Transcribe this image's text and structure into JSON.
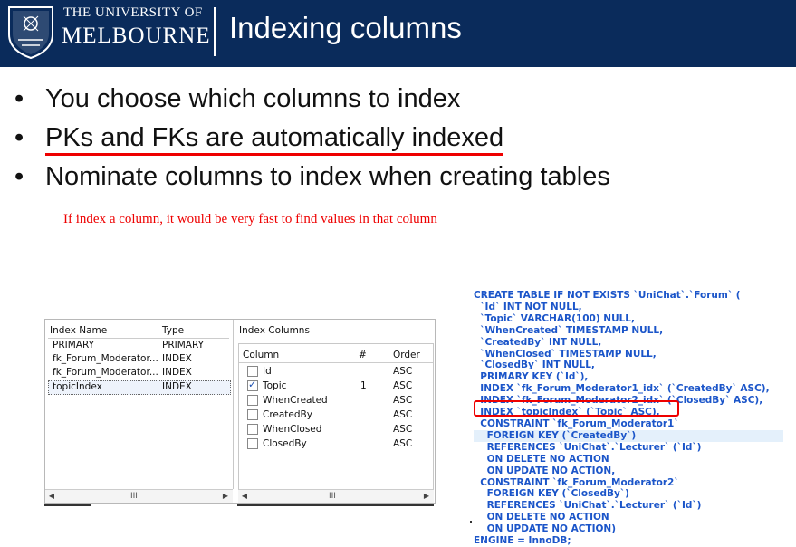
{
  "header": {
    "university_line1": "THE UNIVERSITY OF",
    "university_line2": "MELBOURNE",
    "title": "Indexing columns",
    "bg_color": "#0a2b5b"
  },
  "bullets": [
    "You choose which columns to index",
    "PKs and FKs are automatically indexed",
    "Nominate columns to index when creating tables"
  ],
  "note": "If index a column, it would be very fast to find values in that column",
  "index_panel": {
    "list_headers": {
      "name": "Index Name",
      "type": "Type"
    },
    "indexes": [
      {
        "name": "PRIMARY",
        "type": "PRIMARY"
      },
      {
        "name": "fk_Forum_Moderator...",
        "type": "INDEX"
      },
      {
        "name": "fk_Forum_Moderator...",
        "type": "INDEX"
      },
      {
        "name": "topicIndex",
        "type": "INDEX"
      }
    ],
    "columns_label": "Index Columns",
    "col_headers": {
      "column": "Column",
      "num": "#",
      "order": "Order"
    },
    "columns": [
      {
        "name": "Id",
        "checked": false,
        "num": "",
        "order": "ASC"
      },
      {
        "name": "Topic",
        "checked": true,
        "num": "1",
        "order": "ASC"
      },
      {
        "name": "WhenCreated",
        "checked": false,
        "num": "",
        "order": "ASC"
      },
      {
        "name": "CreatedBy",
        "checked": false,
        "num": "",
        "order": "ASC"
      },
      {
        "name": "WhenClosed",
        "checked": false,
        "num": "",
        "order": "ASC"
      },
      {
        "name": "ClosedBy",
        "checked": false,
        "num": "",
        "order": "ASC"
      }
    ],
    "scroll_grip": "III"
  },
  "sql_lines": [
    "CREATE TABLE IF NOT EXISTS `UniChat`.`Forum` (",
    "  `Id` INT NOT NULL,",
    "  `Topic` VARCHAR(100) NULL,",
    "  `WhenCreated` TIMESTAMP NULL,",
    "  `CreatedBy` INT NULL,",
    "  `WhenClosed` TIMESTAMP NULL,",
    "  `ClosedBy` INT NULL,",
    "  PRIMARY KEY (`Id`),",
    "  INDEX `fk_Forum_Moderator1_idx` (`CreatedBy` ASC),",
    "  INDEX `fk_Forum_Moderator2_idx` (`ClosedBy` ASC),",
    "  INDEX `topicIndex` (`Topic` ASC),",
    "  CONSTRAINT `fk_Forum_Moderator1`",
    "    FOREIGN KEY (`CreatedBy`)",
    "    REFERENCES `UniChat`.`Lecturer` (`Id`)",
    "    ON DELETE NO ACTION",
    "    ON UPDATE NO ACTION,",
    "  CONSTRAINT `fk_Forum_Moderator2`",
    "    FOREIGN KEY (`ClosedBy`)",
    "    REFERENCES `UniChat`.`Lecturer` (`Id`)",
    "    ON DELETE NO ACTION",
    "    ON UPDATE NO ACTION)",
    "ENGINE = InnoDB;"
  ]
}
